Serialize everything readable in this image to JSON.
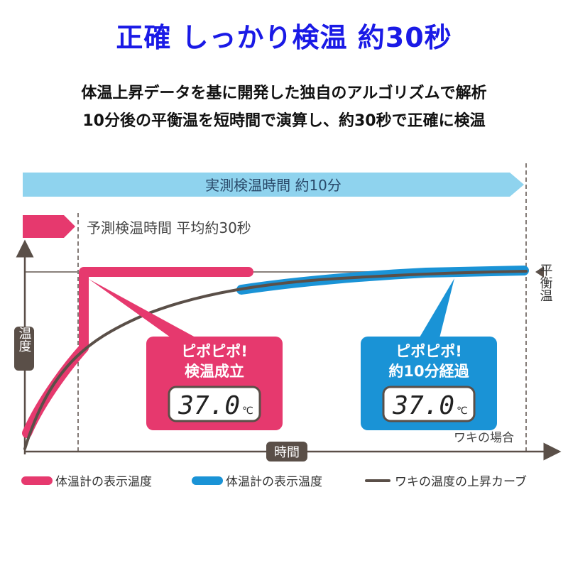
{
  "title": "正確 しっかり検温 約30秒",
  "subtitle_lines": [
    "体温上昇データを基に開発した独自のアルゴリズムで解析",
    "10分後の平衡温を短時間で演算し、約30秒で正確に検温"
  ],
  "arrows": {
    "actual": "実測検温時間 約10分",
    "predicted": "予測検温時間 平均約30秒"
  },
  "axes": {
    "y_label": "温度",
    "x_label": "時間",
    "equilibrium_label": "平衡温",
    "site_note": "ワキの場合"
  },
  "callouts": {
    "predict": {
      "line1": "ピポピポ!",
      "line2": "検温成立",
      "reading": "37.0",
      "unit": "℃"
    },
    "actual": {
      "line1": "ピポピポ!",
      "line2": "約10分経過",
      "reading": "37.0",
      "unit": "℃"
    }
  },
  "legend": [
    {
      "label": "体温計の表示温度",
      "color": "#e6396e"
    },
    {
      "label": "体温計の表示温度",
      "color": "#1a93d6"
    },
    {
      "label": "ワキの温度の上昇カーブ",
      "color": "#5a4f48"
    }
  ],
  "colors": {
    "pink": "#e6396e",
    "blue": "#1a93d6",
    "light_blue": "#8fd3ee",
    "dark": "#5a4f48",
    "title_blue": "#1a1ae6"
  }
}
